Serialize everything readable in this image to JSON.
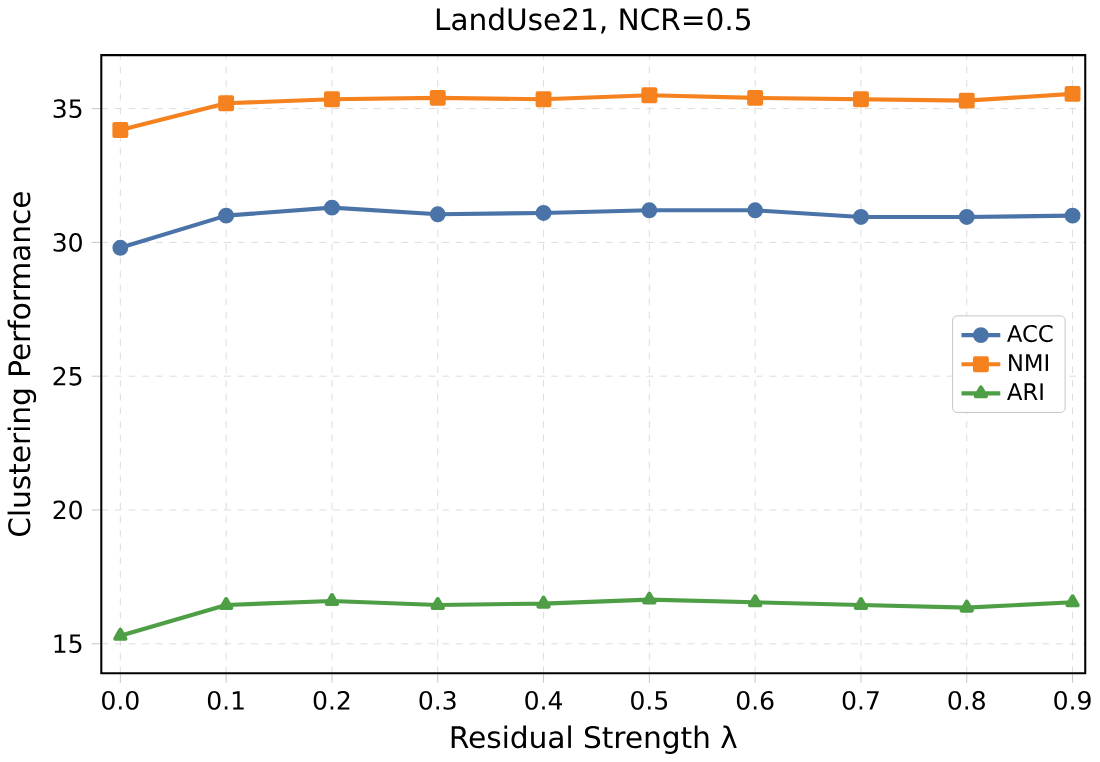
{
  "chart_data": {
    "type": "line",
    "title": "LandUse21, NCR=0.5",
    "xlabel": "Residual Strength λ",
    "ylabel": "Clustering Performance",
    "x": [
      0.0,
      0.1,
      0.2,
      0.3,
      0.4,
      0.5,
      0.6,
      0.7,
      0.8,
      0.9
    ],
    "xlim": [
      -0.018,
      0.912
    ],
    "ylim": [
      13.9,
      37
    ],
    "xticks": [
      {
        "value": 0.0,
        "label": "0.0"
      },
      {
        "value": 0.1,
        "label": "0.1"
      },
      {
        "value": 0.2,
        "label": "0.2"
      },
      {
        "value": 0.3,
        "label": "0.3"
      },
      {
        "value": 0.4,
        "label": "0.4"
      },
      {
        "value": 0.5,
        "label": "0.5"
      },
      {
        "value": 0.6,
        "label": "0.6"
      },
      {
        "value": 0.7,
        "label": "0.7"
      },
      {
        "value": 0.8,
        "label": "0.8"
      },
      {
        "value": 0.9,
        "label": "0.9"
      }
    ],
    "yticks": [
      15,
      20,
      25,
      30,
      35
    ],
    "grid": true,
    "legend": "right",
    "line_style": "solid",
    "series": [
      {
        "name": "ACC",
        "color": "#4a74a8",
        "marker": "circle",
        "values": [
          29.8,
          31.0,
          31.3,
          31.05,
          31.1,
          31.2,
          31.2,
          30.95,
          30.95,
          31.0
        ]
      },
      {
        "name": "NMI",
        "color": "#f5821f",
        "marker": "square",
        "values": [
          34.2,
          35.2,
          35.35,
          35.4,
          35.35,
          35.5,
          35.4,
          35.35,
          35.3,
          35.55
        ]
      },
      {
        "name": "ARI",
        "color": "#4e9e45",
        "marker": "triangle",
        "values": [
          15.3,
          16.45,
          16.6,
          16.45,
          16.5,
          16.65,
          16.55,
          16.45,
          16.35,
          16.55
        ]
      }
    ]
  }
}
